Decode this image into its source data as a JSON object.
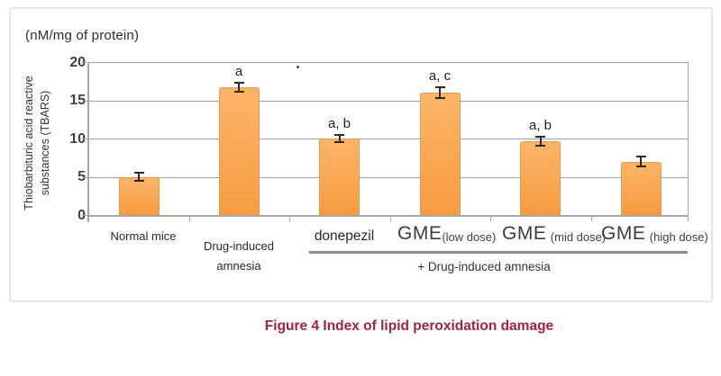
{
  "unit_label": "(nM/mg of protein)",
  "y_axis_title": {
    "line1": "Thiobarbituric acid reactive",
    "line2": "substances (TBARS)"
  },
  "y_tick_labels": [
    "20",
    "15",
    "10",
    "5",
    "0"
  ],
  "chart_data": {
    "type": "bar",
    "title": "Index of lipid peroxidation damage",
    "ylabel": "Thiobarbituric acid reactive substances (TBARS)",
    "y_unit": "nM/mg of protein",
    "ylim": [
      0,
      20
    ],
    "yticks": [
      0,
      5,
      10,
      15,
      20
    ],
    "grid": true,
    "legend": false,
    "categories": [
      "Normal mice",
      "Drug-induced amnesia",
      "donepezil",
      "GME (low dose)",
      "GME (mid dose)",
      "GME (high dose)"
    ],
    "values": [
      5.0,
      16.7,
      10.0,
      16.0,
      9.6,
      7.0
    ],
    "error_bars": [
      0.7,
      0.7,
      0.6,
      0.8,
      0.7,
      0.8
    ],
    "significance_labels": [
      "",
      "a",
      "a, b",
      "a, c",
      "a, b",
      ""
    ],
    "group_members": [
      "donepezil",
      "GME (low dose)",
      "GME (mid dose)",
      "GME (high dose)"
    ],
    "group_label": "+ Drug-induced amnesia",
    "bar_color": "#F9A64F"
  },
  "x_labels": [
    {
      "text": "Normal mice"
    },
    {
      "text": "Drug-induced",
      "text2": "amnesia"
    },
    {
      "text": "donepezil"
    },
    {
      "main": "GME",
      "sub": "(low dose)"
    },
    {
      "main": "GME",
      "sub": "(mid dose)"
    },
    {
      "main": "GME",
      "sub": "(high dose)"
    }
  ],
  "group_annotation": "+ Drug-induced amnesia",
  "caption": "Figure 4 Index of lipid peroxidation damage",
  "colors": {
    "bar_top": "#FBB568",
    "bar_bottom": "#F89C41",
    "bar_border": "#ED9A43",
    "caption": "#A02345",
    "gridline": "#9E9E9E",
    "axis": "#A6A6A6",
    "underline": "#8C8C8C",
    "error_bar": "#2B2B2B"
  }
}
